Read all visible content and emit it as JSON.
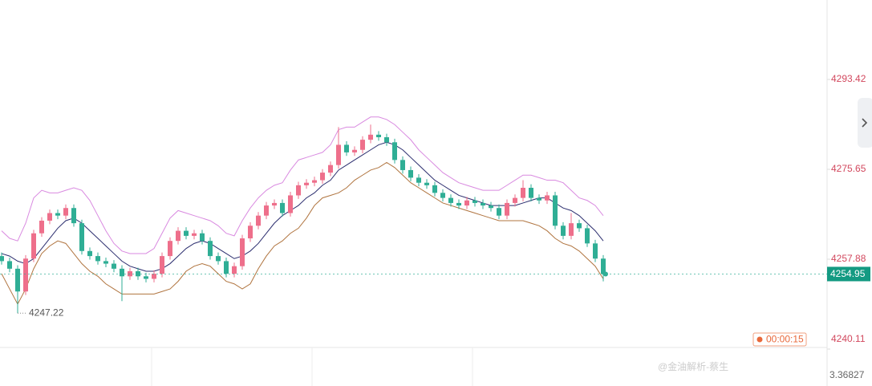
{
  "chart_data": {
    "type": "candlestick",
    "up_color": "#ee6f8b",
    "down_color": "#2fae95",
    "ylim": [
      4240.11,
      4309.13
    ],
    "yticks": [
      4240.11,
      4257.88,
      4275.65,
      4293.42
    ],
    "open": [
      4258.5,
      4257.5,
      4256.0,
      4251.5,
      4258.0,
      4263.0,
      4265.5,
      4267.0,
      4266.5,
      4268.0,
      4265.0,
      4259.5,
      4258.5,
      4257.5,
      4257.0,
      4256.0,
      4254.5,
      4255.5,
      4254.5,
      4254.0,
      4255.0,
      4258.5,
      4261.5,
      4263.5,
      4262.5,
      4263.0,
      4261.5,
      4258.5,
      4257.5,
      4255.0,
      4256.5,
      4262.0,
      4264.5,
      4266.5,
      4268.5,
      4269.0,
      4267.0,
      4270.5,
      4272.5,
      4273.0,
      4273.5,
      4275.0,
      4276.5,
      4280.5,
      4279.0,
      4279.5,
      4281.5,
      4282.5,
      4282.0,
      4281.0,
      4277.5,
      4275.5,
      4274.0,
      4273.0,
      4272.5,
      4271.0,
      4270.0,
      4269.0,
      4268.5,
      4269.5,
      4269.0,
      4268.5,
      4268.0,
      4266.5,
      4269.0,
      4270.0,
      4272.0,
      4270.0,
      4269.5,
      4270.5,
      4264.5,
      4262.5,
      4265.0,
      4264.0,
      4261.0,
      4258.0
    ],
    "high": [
      4259.2,
      4258.2,
      4256.7,
      4258.7,
      4263.7,
      4266.2,
      4267.7,
      4267.7,
      4268.7,
      4268.7,
      4265.7,
      4260.2,
      4259.2,
      4258.2,
      4257.7,
      4256.7,
      4256.2,
      4256.2,
      4255.2,
      4255.7,
      4259.2,
      4262.2,
      4264.2,
      4264.2,
      4263.7,
      4263.7,
      4262.2,
      4259.2,
      4258.2,
      4257.2,
      4262.7,
      4265.2,
      4267.2,
      4269.2,
      4269.7,
      4269.7,
      4271.2,
      4273.2,
      4273.7,
      4274.2,
      4275.7,
      4277.2,
      4284.0,
      4281.2,
      4280.2,
      4282.2,
      4284.5,
      4283.2,
      4282.7,
      4281.7,
      4278.2,
      4276.2,
      4274.7,
      4273.7,
      4273.2,
      4271.7,
      4270.7,
      4269.7,
      4270.2,
      4270.2,
      4269.7,
      4269.2,
      4268.7,
      4269.7,
      4270.7,
      4273.5,
      4272.7,
      4270.7,
      4271.2,
      4271.2,
      4265.2,
      4267.0,
      4265.7,
      4264.7,
      4261.7,
      4258.7
    ],
    "low": [
      4256.8,
      4255.3,
      4247.22,
      4250.8,
      4257.3,
      4262.3,
      4264.8,
      4265.8,
      4265.8,
      4264.3,
      4258.8,
      4257.8,
      4256.8,
      4256.3,
      4255.3,
      4249.6,
      4253.8,
      4253.8,
      4253.3,
      4253.3,
      4254.3,
      4257.8,
      4260.8,
      4261.8,
      4261.8,
      4260.8,
      4257.8,
      4256.8,
      4254.3,
      4254.3,
      4255.8,
      4261.3,
      4263.8,
      4265.8,
      4267.8,
      4266.3,
      4266.3,
      4269.8,
      4271.8,
      4272.3,
      4272.8,
      4274.3,
      4275.8,
      4278.3,
      4278.3,
      4278.8,
      4280.8,
      4281.3,
      4280.3,
      4276.8,
      4274.8,
      4273.3,
      4272.3,
      4271.8,
      4270.3,
      4269.3,
      4268.3,
      4267.8,
      4267.8,
      4268.3,
      4267.8,
      4267.3,
      4265.8,
      4265.8,
      4268.3,
      4269.3,
      4269.3,
      4268.8,
      4268.8,
      4263.8,
      4261.8,
      4261.8,
      4263.3,
      4260.3,
      4257.3,
      4253.5
    ],
    "close": [
      4257.5,
      4256.0,
      4251.5,
      4258.0,
      4263.0,
      4265.5,
      4267.0,
      4266.5,
      4268.0,
      4265.0,
      4259.5,
      4258.5,
      4257.5,
      4257.0,
      4256.0,
      4254.5,
      4255.5,
      4254.5,
      4254.0,
      4255.0,
      4258.5,
      4261.5,
      4263.5,
      4262.5,
      4263.0,
      4261.5,
      4258.5,
      4257.5,
      4255.0,
      4256.5,
      4262.0,
      4264.5,
      4266.5,
      4268.5,
      4269.0,
      4267.0,
      4270.5,
      4272.5,
      4273.0,
      4273.5,
      4275.0,
      4276.5,
      4280.5,
      4279.0,
      4279.5,
      4281.5,
      4282.5,
      4282.0,
      4281.0,
      4277.5,
      4275.5,
      4274.0,
      4273.0,
      4272.5,
      4271.0,
      4270.0,
      4269.0,
      4268.5,
      4269.5,
      4269.0,
      4268.5,
      4268.0,
      4266.5,
      4269.0,
      4270.0,
      4272.0,
      4270.0,
      4269.5,
      4270.5,
      4264.5,
      4262.5,
      4265.0,
      4264.0,
      4261.0,
      4258.0,
      4254.95
    ],
    "bands": [
      {
        "color": "#d98ae0",
        "values": [
          4263.5,
          4262,
          4261.5,
          4265,
          4270,
          4271.5,
          4271,
          4271,
          4271.5,
          4272,
          4271.5,
          4269.5,
          4266.5,
          4263.5,
          4261,
          4259.5,
          4259,
          4259,
          4259,
          4260,
          4263,
          4266,
          4267.5,
          4267,
          4266.5,
          4266,
          4265.5,
          4264.5,
          4263,
          4262.5,
          4265.5,
          4268,
          4270,
          4271.5,
          4272.5,
          4273,
          4275.5,
          4277.5,
          4278,
          4278.5,
          4279,
          4280.5,
          4283.5,
          4284,
          4284,
          4285,
          4286,
          4286,
          4285.5,
          4284.5,
          4283,
          4281.5,
          4279.5,
          4278,
          4276.5,
          4275,
          4274,
          4273,
          4272.5,
          4272,
          4271.5,
          4271.5,
          4271.5,
          4272.5,
          4273.5,
          4274.5,
          4274.5,
          4274,
          4273.5,
          4273.5,
          4273,
          4271.5,
          4270,
          4269.5,
          4268.5,
          4266.5
        ]
      },
      {
        "color": "#2b2d6e",
        "values": [
          4259,
          4258.5,
          4257.5,
          4257,
          4258,
          4260,
          4262,
          4264,
          4265.5,
          4266,
          4265,
          4263.5,
          4262,
          4260.5,
          4259,
          4257.5,
          4256.5,
          4256,
          4255.5,
          4255.5,
          4256,
          4257,
          4258.5,
          4260,
          4261,
          4261.5,
          4261,
          4260,
          4259,
          4258,
          4258.5,
          4259.5,
          4261,
          4263,
          4265,
          4266.5,
          4267.5,
          4268.5,
          4270,
          4271,
          4272.5,
          4273.5,
          4275.5,
          4276.5,
          4277.5,
          4278.5,
          4279.5,
          4280.5,
          4281,
          4280.5,
          4279.5,
          4278,
          4276.5,
          4275,
          4273.5,
          4272.5,
          4271.5,
          4270.5,
          4270,
          4269.5,
          4269,
          4268.5,
          4268.5,
          4268.5,
          4268.5,
          4269,
          4269.5,
          4270,
          4270,
          4269,
          4268,
          4267.5,
          4266.5,
          4265,
          4263.5,
          4261.5
        ]
      },
      {
        "color": "#b0743f",
        "values": [
          4255,
          4252,
          4249,
          4252,
          4256,
          4259,
          4260.5,
          4261.5,
          4261,
          4259,
          4257,
          4255.5,
          4254.5,
          4253,
          4252,
          4251,
          4251,
          4251,
          4251,
          4251,
          4251.5,
          4252,
          4253.5,
          4255.5,
          4256.5,
          4257,
          4256.5,
          4255,
          4253.5,
          4253,
          4252,
          4253,
          4256,
          4258.5,
          4260.5,
          4261.5,
          4263,
          4264,
          4266,
          4268.5,
          4270,
          4270.5,
          4271,
          4272,
          4273.5,
          4274.5,
          4275.5,
          4276,
          4277,
          4276,
          4274.5,
          4273,
          4272,
          4271,
          4270,
          4269,
          4268.5,
          4268,
          4267.5,
          4267,
          4266.5,
          4266,
          4265.5,
          4265.5,
          4265.5,
          4265.5,
          4265,
          4264.5,
          4263.5,
          4262,
          4261,
          4260.5,
          4259.5,
          4258,
          4256.5,
          4254
        ]
      }
    ],
    "countdown": "00:00:15",
    "indicator_value": 3.36827,
    "watermark": "@金油解析-蔡生"
  }
}
